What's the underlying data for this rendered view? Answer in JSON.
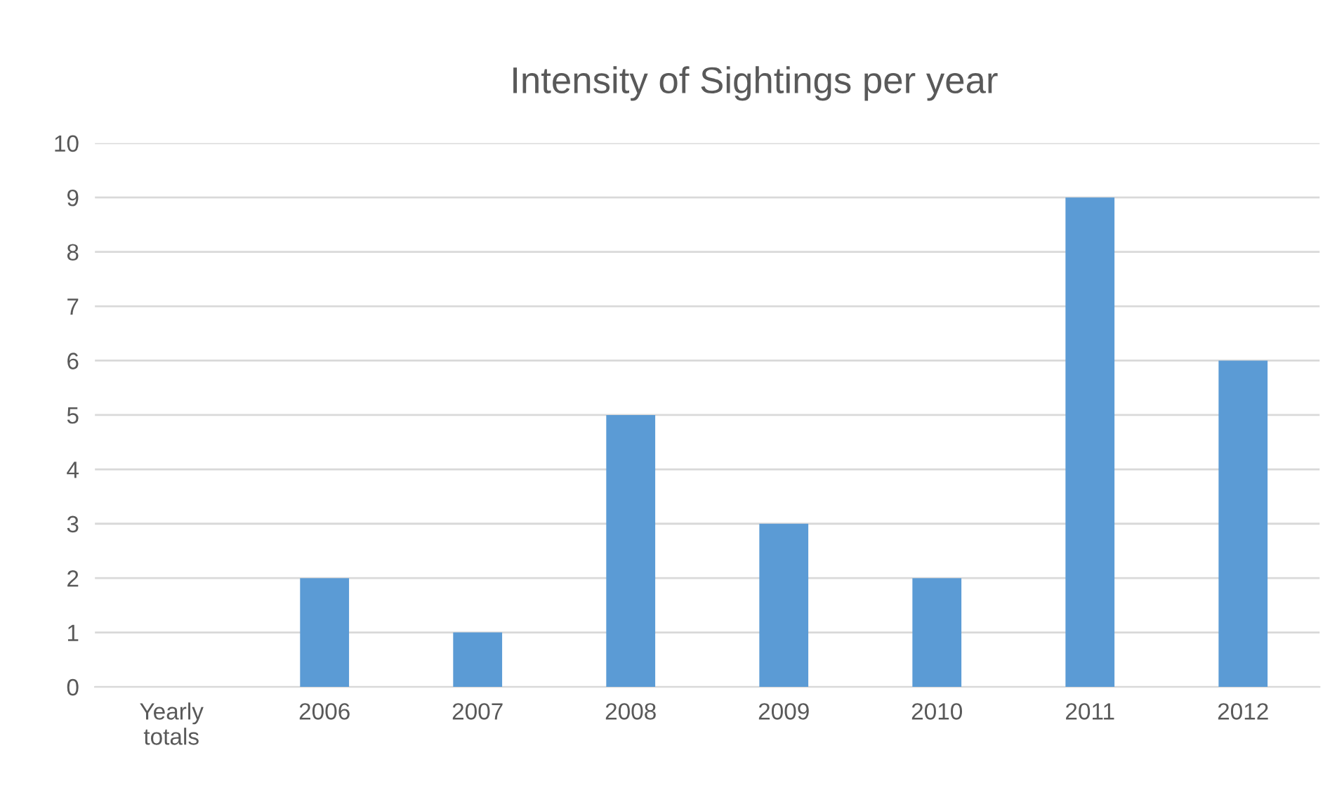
{
  "chart_data": {
    "type": "bar",
    "title": "Intensity of Sightings per year",
    "categories": [
      "Yearly totals",
      "2006",
      "2007",
      "2008",
      "2009",
      "2010",
      "2011",
      "2012"
    ],
    "values": [
      null,
      2,
      1,
      5,
      3,
      2,
      9,
      6
    ],
    "color": "#5b9bd5",
    "ylim": [
      0,
      10
    ],
    "yticks": [
      0,
      1,
      2,
      3,
      4,
      5,
      6,
      7,
      8,
      9,
      10
    ],
    "grid": "y"
  }
}
